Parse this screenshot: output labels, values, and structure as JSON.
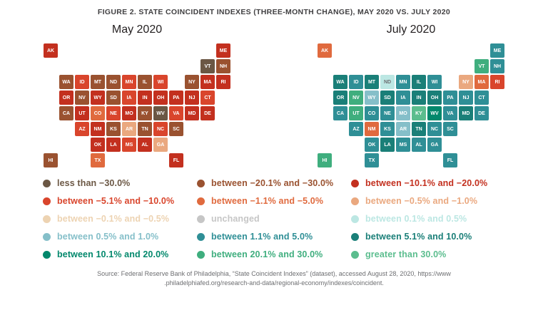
{
  "source": {
    "line1": "Source: Federal Reserve Bank of Philadelphia, “State Coincident Indexes” (dataset), accessed August 28, 2020, https://www",
    "line2": ".philadelphiafed.org/research-and-data/regional-economy/indexes/coincident."
  },
  "chart_data": {
    "type": "choropleth",
    "title": "FIGURE 2. STATE COINCIDENT INDEXES (THREE-MONTH CHANGE), MAY 2020 VS. JULY 2020",
    "legend_position": "bottom",
    "categories": [
      {
        "key": "lt-30",
        "label": "less than −30.0%",
        "color": "#6B5744"
      },
      {
        "key": "n20-30",
        "label": "between −20.1% and −30.0%",
        "color": "#9A5230"
      },
      {
        "key": "n10-20",
        "label": "between −10.1% and −20.0%",
        "color": "#C3301F"
      },
      {
        "key": "n5-10",
        "label": "between −5.1% and −10.0%",
        "color": "#D9452C"
      },
      {
        "key": "n1-5",
        "label": "between −1.1% and −5.0%",
        "color": "#E06A3E"
      },
      {
        "key": "n05-1",
        "label": "between −0.5% and −1.0%",
        "color": "#EAA87F"
      },
      {
        "key": "n01-05",
        "label": "between −0.1% and −0.5%",
        "color": "#EDD3B2"
      },
      {
        "key": "unchanged",
        "label": "unchanged",
        "color": "#C6C6C6"
      },
      {
        "key": "p01-05",
        "label": "between 0.1% and 0.5%",
        "color": "#BCE7E3"
      },
      {
        "key": "p05-1",
        "label": "between 0.5% and 1.0%",
        "color": "#85BFC9"
      },
      {
        "key": "p1-5",
        "label": "between 1.1% and 5.0%",
        "color": "#2F8F96"
      },
      {
        "key": "p5-10",
        "label": "between 5.1% and 10.0%",
        "color": "#1A7F78"
      },
      {
        "key": "p10-20",
        "label": "between 10.1% and 20.0%",
        "color": "#02886C"
      },
      {
        "key": "p20-30",
        "label": "between 20.1% and 30.0%",
        "color": "#3FAE7E"
      },
      {
        "key": "gt30",
        "label": "greater than 30.0%",
        "color": "#5BBD8E"
      }
    ],
    "grid": {
      "AK": [
        0,
        0
      ],
      "ME": [
        11,
        0
      ],
      "VT": [
        10,
        1
      ],
      "NH": [
        11,
        1
      ],
      "WA": [
        1,
        2
      ],
      "ID": [
        2,
        2
      ],
      "MT": [
        3,
        2
      ],
      "ND": [
        4,
        2
      ],
      "MN": [
        5,
        2
      ],
      "IL": [
        6,
        2
      ],
      "WI": [
        7,
        2
      ],
      "NY": [
        9,
        2
      ],
      "MA": [
        10,
        2
      ],
      "RI": [
        11,
        2
      ],
      "OR": [
        1,
        3
      ],
      "NV": [
        2,
        3
      ],
      "WY": [
        3,
        3
      ],
      "SD": [
        4,
        3
      ],
      "IA": [
        5,
        3
      ],
      "IN": [
        6,
        3
      ],
      "OH": [
        7,
        3
      ],
      "PA": [
        8,
        3
      ],
      "NJ": [
        9,
        3
      ],
      "CT": [
        10,
        3
      ],
      "CA": [
        1,
        4
      ],
      "UT": [
        2,
        4
      ],
      "CO": [
        3,
        4
      ],
      "NE": [
        4,
        4
      ],
      "MO": [
        5,
        4
      ],
      "KY": [
        6,
        4
      ],
      "WV": [
        7,
        4
      ],
      "VA": [
        8,
        4
      ],
      "MD": [
        9,
        4
      ],
      "DE": [
        10,
        4
      ],
      "AZ": [
        2,
        5
      ],
      "NM": [
        3,
        5
      ],
      "KS": [
        4,
        5
      ],
      "AR": [
        5,
        5
      ],
      "TN": [
        6,
        5
      ],
      "NC": [
        7,
        5
      ],
      "SC": [
        8,
        5
      ],
      "OK": [
        3,
        6
      ],
      "LA": [
        4,
        6
      ],
      "MS": [
        5,
        6
      ],
      "AL": [
        6,
        6
      ],
      "GA": [
        7,
        6
      ],
      "HI": [
        0,
        7
      ],
      "TX": [
        3,
        7
      ],
      "FL": [
        8,
        7
      ]
    },
    "maps": [
      {
        "label": "May 2020",
        "states": {
          "AK": "n10-20",
          "ME": "n10-20",
          "VT": "lt-30",
          "NH": "n20-30",
          "WA": "n20-30",
          "ID": "n5-10",
          "MT": "n20-30",
          "ND": "n20-30",
          "MN": "n5-10",
          "IL": "n20-30",
          "WI": "n5-10",
          "NY": "n20-30",
          "MA": "n10-20",
          "RI": "n10-20",
          "OR": "n10-20",
          "NV": "n20-30",
          "WY": "n10-20",
          "SD": "n20-30",
          "IA": "n5-10",
          "IN": "n10-20",
          "OH": "n10-20",
          "PA": "n10-20",
          "NJ": "n10-20",
          "CT": "n5-10",
          "CA": "n20-30",
          "UT": "n10-20",
          "CO": "n1-5",
          "NE": "n5-10",
          "MO": "n10-20",
          "KY": "n20-30",
          "WV": "lt-30",
          "VA": "n5-10",
          "MD": "n10-20",
          "DE": "n10-20",
          "AZ": "n5-10",
          "NM": "n10-20",
          "KS": "n20-30",
          "AR": "n05-1",
          "TN": "n20-30",
          "NC": "n5-10",
          "SC": "n20-30",
          "OK": "n10-20",
          "LA": "n10-20",
          "MS": "n5-10",
          "AL": "n10-20",
          "GA": "n05-1",
          "HI": "n20-30",
          "TX": "n1-5",
          "FL": "n10-20",
          "MI": "lt-30"
        }
      },
      {
        "label": "July 2020",
        "states": {
          "AK": "n1-5",
          "ME": "p1-5",
          "VT": "p20-30",
          "NH": "p1-5",
          "WA": "p5-10",
          "ID": "p1-5",
          "MT": "p5-10",
          "ND": "p01-05",
          "MN": "p1-5",
          "IL": "p5-10",
          "WI": "p1-5",
          "NY": "n05-1",
          "MA": "n1-5",
          "RI": "n5-10",
          "OR": "p5-10",
          "NV": "p20-30",
          "WY": "p05-1",
          "SD": "p5-10",
          "IA": "p1-5",
          "IN": "p5-10",
          "OH": "p5-10",
          "PA": "p1-5",
          "NJ": "p1-5",
          "CT": "p1-5",
          "CA": "p1-5",
          "UT": "p20-30",
          "CO": "p1-5",
          "NE": "p1-5",
          "MO": "p05-1",
          "KY": "gt30",
          "WV": "p10-20",
          "VA": "p1-5",
          "MD": "p5-10",
          "DE": "p1-5",
          "AZ": "p1-5",
          "NM": "n1-5",
          "KS": "p1-5",
          "AR": "p05-1",
          "TN": "p5-10",
          "NC": "p1-5",
          "SC": "p1-5",
          "OK": "p1-5",
          "LA": "p5-10",
          "MS": "p1-5",
          "AL": "p1-5",
          "GA": "p1-5",
          "HI": "p20-30",
          "TX": "p1-5",
          "FL": "p1-5",
          "MI": "gt30"
        }
      }
    ]
  }
}
